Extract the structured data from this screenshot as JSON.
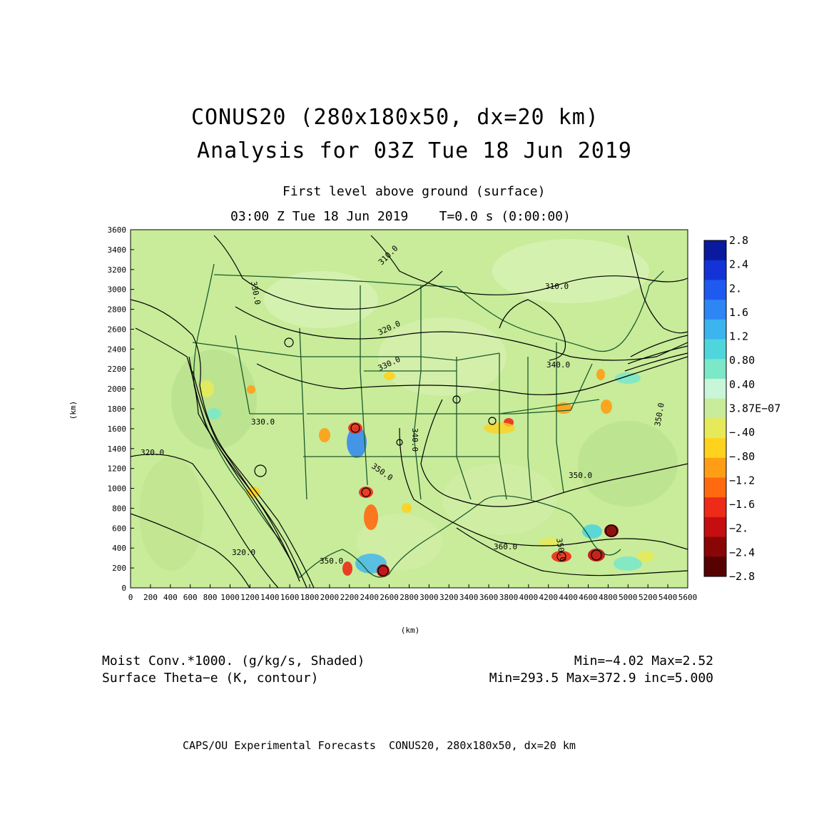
{
  "header": {
    "title_line1": "CONUS20 (280x180x50, dx=20 km)",
    "title_line2": "Analysis for 03Z Tue 18 Jun 2019",
    "level_text": "First level above ground (surface)",
    "time_text": "03:00 Z Tue 18 Jun 2019    T=0.0 s (0:00:00)"
  },
  "axes": {
    "x_unit": "(km)",
    "y_unit": "(km)",
    "x_ticks": [
      "0",
      "200",
      "400",
      "600",
      "800",
      "1000",
      "1200",
      "1400",
      "1600",
      "1800",
      "2000",
      "2200",
      "2400",
      "2600",
      "2800",
      "3000",
      "3200",
      "3400",
      "3600",
      "3800",
      "4000",
      "4200",
      "4400",
      "4600",
      "4800",
      "5000",
      "5200",
      "5400",
      "5600"
    ],
    "y_ticks": [
      "0",
      "200",
      "400",
      "600",
      "800",
      "1000",
      "1200",
      "1400",
      "1600",
      "1800",
      "2000",
      "2200",
      "2400",
      "2600",
      "2800",
      "3000",
      "3200",
      "3400",
      "3600"
    ],
    "x_range": [
      0,
      5600
    ],
    "y_range": [
      0,
      3600
    ]
  },
  "colorbar": {
    "labels": [
      "2.8",
      "2.4",
      "2.",
      "1.6",
      "1.2",
      "0.80",
      "0.40",
      "3.87E−07",
      "−.40",
      "−.80",
      "−1.2",
      "−1.6",
      "−2.",
      "−2.4",
      "−2.8"
    ],
    "colors": [
      "#0a1a9e",
      "#1433d6",
      "#1f5af0",
      "#2e86f5",
      "#3cb4f0",
      "#4fd6dc",
      "#7be8c8",
      "#c9f5d8",
      "#c8ec9a",
      "#e6ea5a",
      "#ffd21e",
      "#ff9e14",
      "#ff6a10",
      "#ee2a18",
      "#c40e10",
      "#8a0606",
      "#560202"
    ]
  },
  "contour_labels": [
    "310.0",
    "310.0",
    "330.0",
    "320.0",
    "330.0",
    "340.0",
    "330.0",
    "320.0",
    "340.0",
    "350.0",
    "350.0",
    "350.0",
    "320.0",
    "350.0",
    "360.0",
    "350.0"
  ],
  "footer": {
    "shaded_field": "Moist Conv.*1000. (g/kg/s, Shaded)",
    "shaded_stats": "Min=−4.02 Max=2.52",
    "contour_field": "Surface Theta−e (K, contour)",
    "contour_stats": "Min=293.5 Max=372.9 inc=5.000",
    "credit": "CAPS/OU Experimental Forecasts  CONUS20, 280x180x50, dx=20 km"
  },
  "colors": {
    "background_field": "#c8ec9a",
    "map_lines": "#1d5a2a",
    "contours": "#000000"
  }
}
